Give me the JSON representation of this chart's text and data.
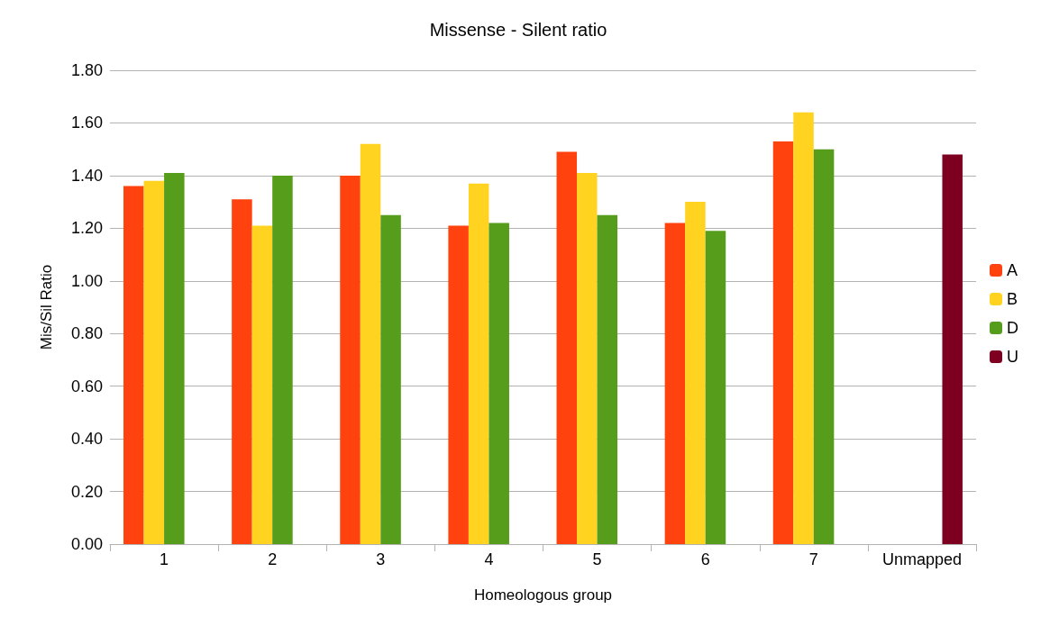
{
  "chart_data": {
    "type": "bar",
    "title": "Missense - Silent ratio",
    "xlabel": "Homeologous group",
    "ylabel": "Mis/Sil Ratio",
    "categories": [
      "1",
      "2",
      "3",
      "4",
      "5",
      "6",
      "7",
      "Unmapped"
    ],
    "series": [
      {
        "name": "A",
        "color": "#ff420e",
        "values": [
          1.36,
          1.31,
          1.4,
          1.21,
          1.49,
          1.22,
          1.53,
          null
        ]
      },
      {
        "name": "B",
        "color": "#ffd320",
        "values": [
          1.38,
          1.21,
          1.52,
          1.37,
          1.41,
          1.3,
          1.64,
          null
        ]
      },
      {
        "name": "D",
        "color": "#579d1c",
        "values": [
          1.41,
          1.4,
          1.25,
          1.22,
          1.25,
          1.19,
          1.5,
          null
        ]
      },
      {
        "name": "U",
        "color": "#7e0021",
        "values": [
          null,
          null,
          null,
          null,
          null,
          null,
          null,
          1.48
        ]
      }
    ],
    "ylim": [
      0,
      1.8
    ],
    "yticks": [
      {
        "value": 0,
        "label": "0.00"
      },
      {
        "value": 0.2,
        "label": "0.20"
      },
      {
        "value": 0.4,
        "label": "0.40"
      },
      {
        "value": 0.6,
        "label": "0.60"
      },
      {
        "value": 0.8,
        "label": "0.80"
      },
      {
        "value": 1,
        "label": "1.00"
      },
      {
        "value": 1.2,
        "label": "1.20"
      },
      {
        "value": 1.4,
        "label": "1.40"
      },
      {
        "value": 1.6,
        "label": "1.60"
      },
      {
        "value": 1.8,
        "label": "1.80"
      }
    ],
    "grid": "y",
    "legend": "right"
  }
}
